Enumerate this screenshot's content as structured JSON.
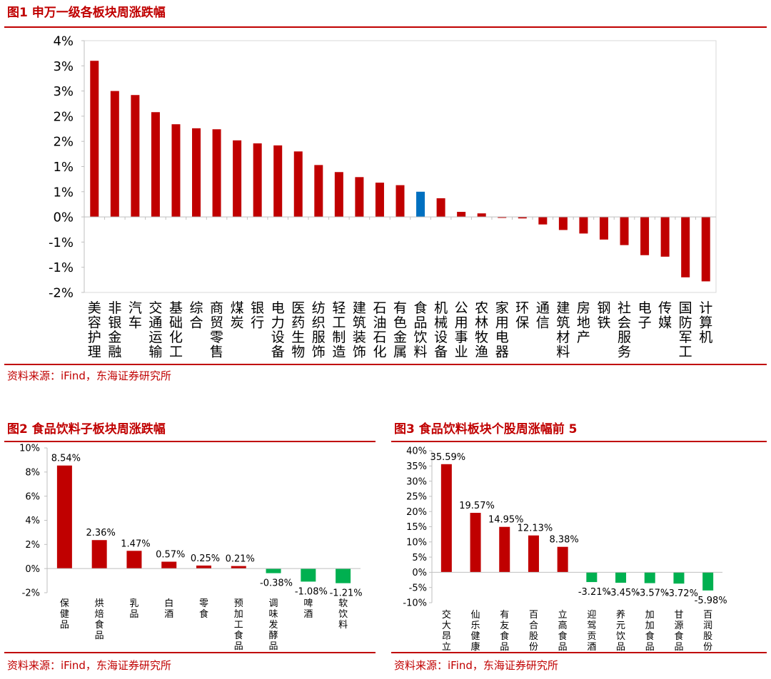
{
  "figures": [
    {
      "title": "图1  申万一级各板块周涨跌幅",
      "source": "资料来源：iFind，东海证券研究所"
    },
    {
      "title": "图2  食品饮料子板块周涨跌幅",
      "source": "资料来源：iFind，东海证券研究所"
    },
    {
      "title": "图3  食品饮料板块个股周涨幅前 5",
      "source": "资料来源：iFind，东海证券研究所"
    }
  ],
  "colors": {
    "accent": "#c00000",
    "bar_red": "#c00000",
    "bar_blue": "#0070c0",
    "bar_green": "#00b050"
  },
  "chart_data": [
    {
      "type": "bar",
      "title": "申万一级各板块周涨跌幅",
      "categories": [
        "美容护理",
        "非银金融",
        "汽车",
        "交通运输",
        "基础化工",
        "综合",
        "商贸零售",
        "煤炭",
        "银行",
        "电力设备",
        "医药生物",
        "纺织服饰",
        "轻工制造",
        "建筑装饰",
        "石油石化",
        "有色金属",
        "食品饮料",
        "机械设备",
        "公用事业",
        "农林牧渔",
        "家用电器",
        "环保",
        "通信",
        "建筑材料",
        "房地产",
        "钢铁",
        "社会服务",
        "电子",
        "传媒",
        "国防军工",
        "计算机"
      ],
      "values": [
        3.1,
        2.5,
        2.42,
        2.08,
        1.84,
        1.76,
        1.74,
        1.52,
        1.46,
        1.42,
        1.3,
        1.03,
        0.89,
        0.79,
        0.68,
        0.63,
        0.5,
        0.37,
        0.1,
        0.07,
        -0.02,
        -0.03,
        -0.15,
        -0.26,
        -0.33,
        -0.45,
        -0.56,
        -0.76,
        -0.79,
        -1.2,
        -1.28
      ],
      "highlight": "食品饮料",
      "ylim": [
        -1.5,
        3.5
      ],
      "y_ticks": [
        -1.5,
        -1,
        -0.5,
        0,
        0.5,
        1,
        1.5,
        2,
        2.5,
        3,
        3.5
      ],
      "y_tick_labels": [
        "-2%",
        "-1%",
        "-1%",
        "0%",
        "1%",
        "1%",
        "2%",
        "2%",
        "3%",
        "3%",
        "4%"
      ],
      "data_labels": false
    },
    {
      "type": "bar",
      "title": "食品饮料子板块周涨跌幅",
      "categories": [
        "保健品",
        "烘焙食品",
        "乳品",
        "白酒",
        "零食",
        "预加工食品",
        "调味发酵品",
        "啤酒",
        "软饮料"
      ],
      "values": [
        8.54,
        2.36,
        1.47,
        0.57,
        0.25,
        0.21,
        -0.38,
        -1.08,
        -1.21
      ],
      "value_labels": [
        "8.54%",
        "2.36%",
        "1.47%",
        "0.57%",
        "0.25%",
        "0.21%",
        "-0.38%",
        "-1.08%",
        "-1.21%"
      ],
      "ylim": [
        -2,
        10
      ],
      "y_ticks": [
        -2,
        0,
        2,
        4,
        6,
        8,
        10
      ],
      "y_tick_labels": [
        "-2%",
        "0%",
        "2%",
        "4%",
        "6%",
        "8%",
        "10%"
      ],
      "data_labels": true
    },
    {
      "type": "bar",
      "title": "食品饮料板块个股周涨幅前 5",
      "categories": [
        "交大昂立",
        "仙乐健康",
        "有友食品",
        "百合股份",
        "立高食品",
        "迎驾贡酒",
        "养元饮品",
        "加加食品",
        "甘源食品",
        "百润股份"
      ],
      "values": [
        35.59,
        19.57,
        14.95,
        12.13,
        8.38,
        -3.21,
        -3.45,
        -3.57,
        -3.72,
        -5.98
      ],
      "value_labels": [
        "35.59%",
        "19.57%",
        "14.95%",
        "12.13%",
        "8.38%",
        "-3.21%",
        "-3.45%",
        "-3.57%",
        "-3.72%",
        "-5.98%"
      ],
      "ylim": [
        -10,
        40
      ],
      "y_ticks": [
        -10,
        -5,
        0,
        5,
        10,
        15,
        20,
        25,
        30,
        35,
        40
      ],
      "y_tick_labels": [
        "-10%",
        "-5%",
        "0%",
        "5%",
        "10%",
        "15%",
        "20%",
        "25%",
        "30%",
        "35%",
        "40%"
      ],
      "data_labels": true
    }
  ]
}
